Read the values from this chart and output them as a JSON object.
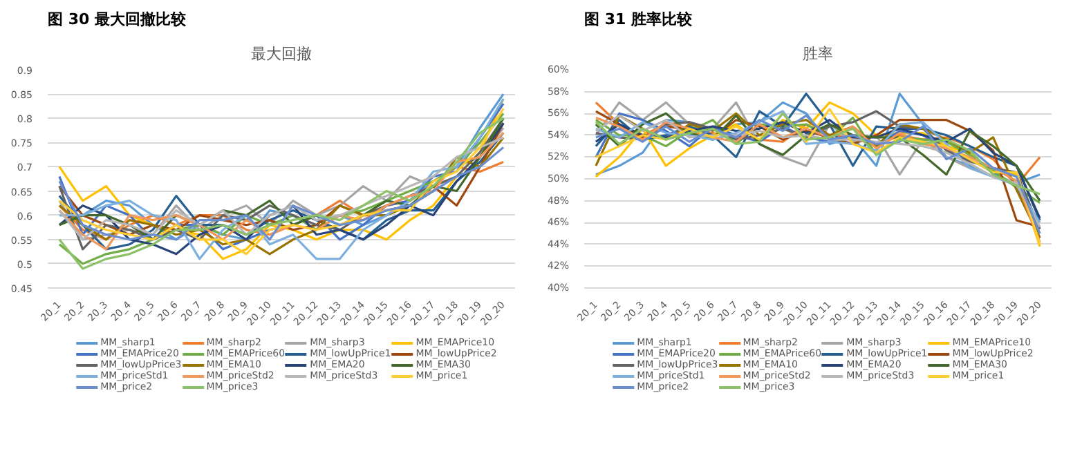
{
  "chart_data": [
    {
      "type": "line",
      "title": "图 30 最大回撤比较",
      "subtitle": "最大回撤",
      "categories": [
        "20_1",
        "20_2",
        "20_3",
        "20_4",
        "20_5",
        "20_6",
        "20_7",
        "20_8",
        "20_9",
        "20_10",
        "20_11",
        "20_12",
        "20_13",
        "20_14",
        "20_15",
        "20_16",
        "20_17",
        "20_18",
        "20_19",
        "20_20"
      ],
      "ylim": [
        0.45,
        0.9
      ],
      "yticks": [
        0.45,
        0.5,
        0.55,
        0.6,
        0.65,
        0.7,
        0.75,
        0.8,
        0.85,
        0.9
      ],
      "grid": "y",
      "legend": "bottom",
      "series": [
        {
          "name": "MM_sharp1",
          "color": "#5b9bd5",
          "values": [
            0.6,
            0.6,
            0.63,
            0.62,
            0.58,
            0.55,
            0.58,
            0.56,
            0.55,
            0.61,
            0.6,
            0.57,
            0.6,
            0.58,
            0.6,
            0.63,
            0.67,
            0.7,
            0.78,
            0.85
          ]
        },
        {
          "name": "MM_sharp2",
          "color": "#ed7d31",
          "values": [
            0.62,
            0.57,
            0.55,
            0.58,
            0.6,
            0.58,
            0.6,
            0.6,
            0.57,
            0.56,
            0.58,
            0.6,
            0.63,
            0.6,
            0.62,
            0.63,
            0.66,
            0.7,
            0.69,
            0.71
          ]
        },
        {
          "name": "MM_sharp3",
          "color": "#a5a5a5",
          "values": [
            0.63,
            0.55,
            0.56,
            0.57,
            0.56,
            0.62,
            0.57,
            0.6,
            0.62,
            0.58,
            0.63,
            0.6,
            0.62,
            0.66,
            0.63,
            0.68,
            0.66,
            0.7,
            0.72,
            0.78
          ]
        },
        {
          "name": "MM_EMAPrice10",
          "color": "#ffc000",
          "values": [
            0.7,
            0.63,
            0.66,
            0.6,
            0.58,
            0.57,
            0.56,
            0.51,
            0.53,
            0.58,
            0.57,
            0.55,
            0.57,
            0.57,
            0.55,
            0.59,
            0.62,
            0.68,
            0.73,
            0.84
          ]
        },
        {
          "name": "MM_EMAPrice20",
          "color": "#4472c4",
          "values": [
            0.68,
            0.56,
            0.62,
            0.6,
            0.55,
            0.58,
            0.58,
            0.53,
            0.55,
            0.57,
            0.58,
            0.6,
            0.55,
            0.58,
            0.62,
            0.63,
            0.68,
            0.69,
            0.76,
            0.83
          ]
        },
        {
          "name": "MM_EMAPrice60",
          "color": "#70ad47",
          "values": [
            0.54,
            0.5,
            0.52,
            0.53,
            0.55,
            0.57,
            0.58,
            0.56,
            0.6,
            0.58,
            0.6,
            0.57,
            0.6,
            0.61,
            0.63,
            0.65,
            0.67,
            0.7,
            0.75,
            0.81
          ]
        },
        {
          "name": "MM_lowUpPrice1",
          "color": "#255e91",
          "values": [
            0.64,
            0.58,
            0.53,
            0.54,
            0.57,
            0.64,
            0.58,
            0.58,
            0.56,
            0.59,
            0.61,
            0.59,
            0.57,
            0.55,
            0.59,
            0.61,
            0.61,
            0.67,
            0.71,
            0.77
          ]
        },
        {
          "name": "MM_lowUpPrice2",
          "color": "#9e480e",
          "values": [
            0.66,
            0.6,
            0.58,
            0.56,
            0.58,
            0.57,
            0.6,
            0.59,
            0.58,
            0.59,
            0.57,
            0.58,
            0.62,
            0.6,
            0.61,
            0.62,
            0.66,
            0.62,
            0.7,
            0.79
          ]
        },
        {
          "name": "MM_lowUpPrice3",
          "color": "#636363",
          "values": [
            0.66,
            0.53,
            0.58,
            0.57,
            0.55,
            0.57,
            0.55,
            0.6,
            0.59,
            0.62,
            0.6,
            0.58,
            0.57,
            0.6,
            0.62,
            0.64,
            0.66,
            0.68,
            0.73,
            0.8
          ]
        },
        {
          "name": "MM_EMA10",
          "color": "#997300",
          "values": [
            0.62,
            0.58,
            0.55,
            0.59,
            0.58,
            0.56,
            0.57,
            0.54,
            0.55,
            0.52,
            0.55,
            0.57,
            0.62,
            0.6,
            0.6,
            0.62,
            0.65,
            0.72,
            0.7,
            0.76
          ]
        },
        {
          "name": "MM_EMA20",
          "color": "#264478",
          "values": [
            0.58,
            0.62,
            0.6,
            0.55,
            0.54,
            0.52,
            0.56,
            0.58,
            0.55,
            0.6,
            0.62,
            0.56,
            0.57,
            0.55,
            0.58,
            0.62,
            0.6,
            0.67,
            0.72,
            0.79
          ]
        },
        {
          "name": "MM_EMA30",
          "color": "#43682b",
          "values": [
            0.58,
            0.6,
            0.6,
            0.58,
            0.55,
            0.6,
            0.58,
            0.61,
            0.6,
            0.63,
            0.58,
            0.6,
            0.58,
            0.6,
            0.63,
            0.62,
            0.66,
            0.65,
            0.72,
            0.8
          ]
        },
        {
          "name": "MM_priceStd1",
          "color": "#7cafdd",
          "values": [
            0.6,
            0.6,
            0.62,
            0.63,
            0.6,
            0.59,
            0.51,
            0.57,
            0.6,
            0.54,
            0.56,
            0.51,
            0.51,
            0.57,
            0.6,
            0.63,
            0.69,
            0.7,
            0.76,
            0.84
          ]
        },
        {
          "name": "MM_priceStd2",
          "color": "#f1975a",
          "values": [
            0.61,
            0.56,
            0.53,
            0.6,
            0.59,
            0.6,
            0.58,
            0.55,
            0.59,
            0.56,
            0.58,
            0.57,
            0.6,
            0.59,
            0.62,
            0.64,
            0.65,
            0.71,
            0.72,
            0.77
          ]
        },
        {
          "name": "MM_priceStd3",
          "color": "#b7b7b7",
          "values": [
            0.61,
            0.55,
            0.59,
            0.58,
            0.56,
            0.61,
            0.58,
            0.61,
            0.56,
            0.6,
            0.62,
            0.59,
            0.6,
            0.62,
            0.64,
            0.66,
            0.68,
            0.72,
            0.74,
            0.76
          ]
        },
        {
          "name": "MM_price1",
          "color": "#ffcd33",
          "values": [
            0.63,
            0.59,
            0.57,
            0.56,
            0.55,
            0.58,
            0.55,
            0.55,
            0.52,
            0.57,
            0.58,
            0.57,
            0.58,
            0.6,
            0.61,
            0.61,
            0.67,
            0.69,
            0.74,
            0.82
          ]
        },
        {
          "name": "MM_price2",
          "color": "#698ed0",
          "values": [
            0.67,
            0.58,
            0.56,
            0.55,
            0.56,
            0.55,
            0.59,
            0.59,
            0.6,
            0.55,
            0.62,
            0.6,
            0.58,
            0.59,
            0.61,
            0.62,
            0.65,
            0.68,
            0.7,
            0.74
          ]
        },
        {
          "name": "MM_price3",
          "color": "#8cc168",
          "values": [
            0.55,
            0.49,
            0.51,
            0.52,
            0.54,
            0.57,
            0.57,
            0.58,
            0.56,
            0.58,
            0.59,
            0.6,
            0.59,
            0.62,
            0.65,
            0.63,
            0.66,
            0.71,
            0.77,
            0.8
          ]
        }
      ]
    },
    {
      "type": "line",
      "title": "图 31 胜率比较",
      "subtitle": "胜率",
      "categories": [
        "20_1",
        "20_2",
        "20_3",
        "20_4",
        "20_5",
        "20_6",
        "20_7",
        "20_8",
        "20_9",
        "20_10",
        "20_11",
        "20_12",
        "20_13",
        "20_14",
        "20_15",
        "20_16",
        "20_17",
        "20_18",
        "20_19",
        "20_20"
      ],
      "ylim": [
        40,
        60
      ],
      "yticks": [
        {
          "value": 40,
          "label": "40%"
        },
        {
          "value": 42,
          "label": "42%"
        },
        {
          "value": 44,
          "label": "44%"
        },
        {
          "value": 46,
          "label": "46%"
        },
        {
          "value": 48,
          "label": "48%"
        },
        {
          "value": 50,
          "label": "50%"
        },
        {
          "value": 52,
          "label": "52%"
        },
        {
          "value": 54,
          "label": "54%"
        },
        {
          "value": 56,
          "label": "56%"
        },
        {
          "value": 58,
          "label": "58%"
        },
        {
          "value": 60,
          "label": "60%"
        }
      ],
      "grid": "y",
      "legend": "bottom",
      "series": [
        {
          "name": "MM_sharp1",
          "color": "#5b9bd5",
          "values": [
            50.4,
            51.2,
            52.4,
            55.4,
            55.2,
            54.0,
            55.0,
            55.2,
            57.0,
            56.0,
            53.2,
            53.8,
            51.2,
            57.8,
            55.0,
            52.0,
            51.2,
            50.2,
            49.6,
            50.4
          ]
        },
        {
          "name": "MM_sharp2",
          "color": "#ed7d31",
          "values": [
            57.0,
            55.0,
            54.0,
            55.0,
            54.2,
            54.2,
            53.8,
            53.6,
            53.4,
            55.0,
            54.0,
            53.8,
            53.0,
            54.0,
            53.6,
            53.8,
            53.0,
            51.8,
            49.4,
            52.0
          ]
        },
        {
          "name": "MM_sharp3",
          "color": "#a5a5a5",
          "values": [
            54.0,
            57.0,
            55.4,
            57.0,
            55.0,
            54.6,
            57.0,
            53.2,
            52.0,
            51.2,
            55.0,
            53.4,
            54.0,
            50.4,
            53.6,
            52.0,
            51.0,
            50.2,
            49.6,
            45.0
          ]
        },
        {
          "name": "MM_EMAPrice10",
          "color": "#ffc000",
          "values": [
            50.2,
            52.0,
            54.6,
            51.2,
            52.8,
            54.0,
            55.0,
            53.4,
            55.4,
            54.6,
            57.0,
            56.0,
            54.0,
            54.2,
            54.2,
            53.0,
            52.4,
            50.6,
            50.4,
            43.8
          ]
        },
        {
          "name": "MM_EMAPrice20",
          "color": "#4472c4",
          "values": [
            52.0,
            56.0,
            55.4,
            54.4,
            53.0,
            54.8,
            54.0,
            53.4,
            54.8,
            53.8,
            53.4,
            54.0,
            53.0,
            54.4,
            54.0,
            52.8,
            51.8,
            50.6,
            49.4,
            44.6
          ]
        },
        {
          "name": "MM_EMAPrice60",
          "color": "#70ad47",
          "values": [
            55.4,
            54.0,
            54.0,
            53.0,
            54.4,
            55.4,
            53.2,
            55.0,
            54.8,
            55.0,
            53.8,
            55.6,
            52.2,
            53.8,
            53.6,
            53.4,
            52.2,
            50.8,
            49.2,
            47.8
          ]
        },
        {
          "name": "MM_lowUpPrice1",
          "color": "#255e91",
          "values": [
            53.0,
            55.4,
            53.6,
            54.0,
            54.8,
            54.0,
            52.0,
            56.2,
            54.8,
            57.8,
            55.0,
            51.2,
            54.8,
            54.6,
            54.6,
            54.0,
            53.0,
            52.0,
            51.2,
            46.2
          ]
        },
        {
          "name": "MM_lowUpPrice2",
          "color": "#9e480e",
          "values": [
            56.2,
            55.0,
            53.8,
            54.8,
            54.6,
            53.8,
            55.4,
            54.8,
            53.6,
            54.4,
            53.8,
            53.2,
            54.0,
            55.4,
            55.4,
            55.4,
            54.4,
            52.6,
            46.2,
            45.6
          ]
        },
        {
          "name": "MM_lowUpPrice3",
          "color": "#636363",
          "values": [
            54.2,
            53.8,
            53.6,
            55.0,
            55.2,
            54.6,
            53.6,
            54.0,
            54.6,
            53.8,
            54.8,
            55.2,
            56.2,
            54.8,
            54.6,
            52.6,
            51.6,
            51.0,
            50.6,
            45.4
          ]
        },
        {
          "name": "MM_EMA10",
          "color": "#997300",
          "values": [
            51.2,
            55.8,
            54.6,
            53.6,
            55.0,
            54.4,
            56.0,
            54.0,
            55.0,
            55.4,
            54.0,
            54.8,
            53.0,
            55.0,
            54.6,
            53.6,
            52.4,
            53.8,
            49.0,
            44.6
          ]
        },
        {
          "name": "MM_EMA20",
          "color": "#264478",
          "values": [
            53.4,
            55.0,
            54.0,
            53.8,
            54.4,
            54.8,
            54.4,
            54.6,
            55.2,
            54.2,
            55.4,
            53.8,
            53.8,
            54.6,
            54.0,
            53.4,
            54.6,
            52.4,
            51.2,
            46.4
          ]
        },
        {
          "name": "MM_EMA30",
          "color": "#43682b",
          "values": [
            55.0,
            53.0,
            55.0,
            56.0,
            54.2,
            53.6,
            55.8,
            53.2,
            52.2,
            54.0,
            55.0,
            54.0,
            53.8,
            53.8,
            52.2,
            50.4,
            54.4,
            53.0,
            51.2,
            48.0
          ]
        },
        {
          "name": "MM_priceStd1",
          "color": "#7cafdd",
          "values": [
            54.6,
            53.8,
            55.2,
            54.2,
            54.0,
            53.6,
            54.2,
            55.2,
            56.2,
            53.2,
            53.4,
            53.2,
            52.6,
            55.0,
            55.2,
            53.2,
            51.0,
            50.2,
            49.4,
            46.0
          ]
        },
        {
          "name": "MM_priceStd2",
          "color": "#f1975a",
          "values": [
            55.6,
            54.8,
            53.6,
            55.2,
            54.6,
            53.8,
            53.4,
            55.0,
            53.8,
            54.6,
            53.8,
            54.8,
            52.8,
            54.2,
            53.2,
            52.8,
            52.0,
            51.0,
            49.8,
            44.2
          ]
        },
        {
          "name": "MM_priceStd3",
          "color": "#b7b7b7",
          "values": [
            54.4,
            55.8,
            54.4,
            55.4,
            53.8,
            54.0,
            54.0,
            54.4,
            53.8,
            54.0,
            53.6,
            53.6,
            53.4,
            53.2,
            53.0,
            52.4,
            51.4,
            50.2,
            49.6,
            45.6
          ]
        },
        {
          "name": "MM_price1",
          "color": "#ffcd33",
          "values": [
            52.0,
            53.0,
            54.0,
            53.6,
            54.6,
            53.8,
            54.8,
            53.6,
            56.0,
            53.4,
            56.4,
            53.2,
            52.4,
            53.8,
            53.4,
            53.0,
            51.8,
            50.6,
            50.6,
            44.0
          ]
        },
        {
          "name": "MM_price2",
          "color": "#698ed0",
          "values": [
            53.8,
            54.6,
            53.4,
            54.8,
            53.4,
            54.6,
            53.8,
            55.4,
            54.4,
            55.8,
            53.6,
            54.0,
            53.2,
            53.4,
            54.8,
            51.8,
            52.8,
            51.0,
            50.2,
            45.0
          ]
        },
        {
          "name": "MM_price3",
          "color": "#8cc168",
          "values": [
            55.2,
            53.2,
            54.6,
            53.6,
            54.2,
            54.6,
            53.2,
            53.4,
            56.0,
            53.6,
            53.8,
            54.6,
            52.2,
            53.6,
            53.2,
            53.6,
            52.6,
            50.4,
            49.4,
            48.6
          ]
        }
      ]
    }
  ]
}
